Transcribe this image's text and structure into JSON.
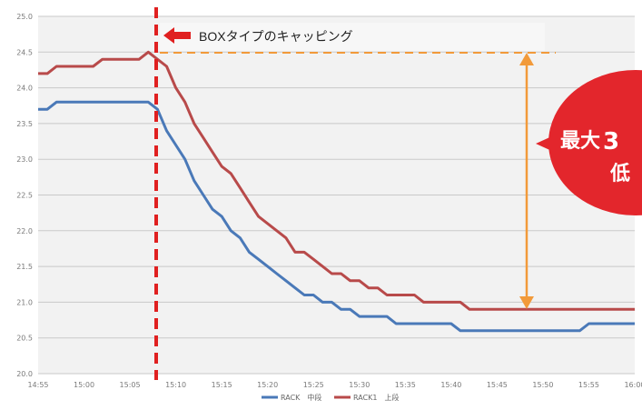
{
  "colors": {
    "series_blue": "#4a79b8",
    "series_red": "#b84a4a",
    "marker": "#e02020",
    "arrow": "#f29a3a",
    "bubble": "#e3262c",
    "bubble_accent": "#ffd34a",
    "plot_bg": "#f2f2f2",
    "grid": "#c9c9c9"
  },
  "annotation": {
    "label": "BOXタイプのキャッピング",
    "bubble_line1_a": "最大",
    "bubble_line1_b": "3",
    "bubble_line2": "低"
  },
  "chart_data": {
    "type": "line",
    "x": [
      "14:55",
      "14:56",
      "14:57",
      "14:58",
      "14:59",
      "15:00",
      "15:01",
      "15:02",
      "15:03",
      "15:04",
      "15:05",
      "15:06",
      "15:07",
      "15:08",
      "15:09",
      "15:10",
      "15:11",
      "15:12",
      "15:13",
      "15:14",
      "15:15",
      "15:16",
      "15:17",
      "15:18",
      "15:19",
      "15:20",
      "15:21",
      "15:22",
      "15:23",
      "15:24",
      "15:25",
      "15:26",
      "15:27",
      "15:28",
      "15:29",
      "15:30",
      "15:31",
      "15:32",
      "15:33",
      "15:34",
      "15:35",
      "15:36",
      "15:37",
      "15:38",
      "15:39",
      "15:40",
      "15:41",
      "15:42",
      "15:43",
      "15:44",
      "15:45",
      "15:46",
      "15:47",
      "15:48",
      "15:49",
      "15:50",
      "15:51",
      "15:52",
      "15:53",
      "15:54",
      "15:55",
      "15:56",
      "15:57",
      "15:58",
      "15:59",
      "16:00"
    ],
    "x_ticks": [
      "14:55",
      "15:00",
      "15:05",
      "15:10",
      "15:15",
      "15:20",
      "15:25",
      "15:30",
      "15:35",
      "15:40",
      "15:45",
      "15:50",
      "15:55",
      "16:00"
    ],
    "y_ticks": [
      "25.0",
      "24.5",
      "24.0",
      "23.5",
      "23.0",
      "22.5",
      "22.0",
      "21.5",
      "21.0",
      "20.5",
      "20.0"
    ],
    "ylim": [
      20.0,
      25.0
    ],
    "grid": true,
    "legend_position": "bottom",
    "series": [
      {
        "name": "RACK　中段",
        "values": [
          23.7,
          23.7,
          23.8,
          23.8,
          23.8,
          23.8,
          23.8,
          23.8,
          23.8,
          23.8,
          23.8,
          23.8,
          23.8,
          23.7,
          23.4,
          23.2,
          23.0,
          22.7,
          22.5,
          22.3,
          22.2,
          22.0,
          21.9,
          21.7,
          21.6,
          21.5,
          21.4,
          21.3,
          21.2,
          21.1,
          21.1,
          21.0,
          21.0,
          20.9,
          20.9,
          20.8,
          20.8,
          20.8,
          20.8,
          20.7,
          20.7,
          20.7,
          20.7,
          20.7,
          20.7,
          20.7,
          20.6,
          20.6,
          20.6,
          20.6,
          20.6,
          20.6,
          20.6,
          20.6,
          20.6,
          20.6,
          20.6,
          20.6,
          20.6,
          20.6,
          20.7,
          20.7,
          20.7,
          20.7,
          20.7,
          20.7
        ]
      },
      {
        "name": "RACK1　上段",
        "values": [
          24.2,
          24.2,
          24.3,
          24.3,
          24.3,
          24.3,
          24.3,
          24.4,
          24.4,
          24.4,
          24.4,
          24.4,
          24.5,
          24.4,
          24.3,
          24.0,
          23.8,
          23.5,
          23.3,
          23.1,
          22.9,
          22.8,
          22.6,
          22.4,
          22.2,
          22.1,
          22.0,
          21.9,
          21.7,
          21.7,
          21.6,
          21.5,
          21.4,
          21.4,
          21.3,
          21.3,
          21.2,
          21.2,
          21.1,
          21.1,
          21.1,
          21.1,
          21.0,
          21.0,
          21.0,
          21.0,
          21.0,
          20.9,
          20.9,
          20.9,
          20.9,
          20.9,
          20.9,
          20.9,
          20.9,
          20.9,
          20.9,
          20.9,
          20.9,
          20.9,
          20.9,
          20.9,
          20.9,
          20.9,
          20.9,
          20.9
        ]
      }
    ]
  }
}
